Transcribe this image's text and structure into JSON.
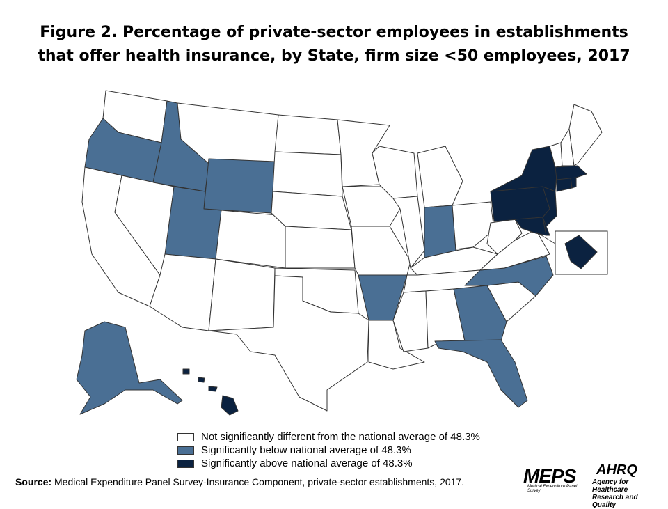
{
  "title_line1": "Figure 2. Percentage of private-sector employees in establishments",
  "title_line2": "that offer health insurance, by State, firm size <50 employees, 2017",
  "colors": {
    "not_significant": "#ffffff",
    "below": "#4a6f94",
    "above": "#0b2240",
    "border": "#333333"
  },
  "legend": [
    {
      "label": "Not significantly different from the national average of 48.3%",
      "category": "not_significant"
    },
    {
      "label": "Significantly below national average of 48.3%",
      "category": "below"
    },
    {
      "label": "Significantly above national average of 48.3%",
      "category": "above"
    }
  ],
  "states_below": [
    "Oregon",
    "Idaho",
    "Wyoming",
    "Utah",
    "Arkansas",
    "Indiana",
    "North Carolina",
    "Georgia",
    "Florida",
    "Alaska"
  ],
  "states_above": [
    "New York",
    "Pennsylvania",
    "New Jersey",
    "Maryland",
    "Delaware",
    "Massachusetts",
    "Rhode Island",
    "Connecticut",
    "District of Columbia",
    "Hawaii"
  ],
  "source_label": "Source:",
  "source_text": " Medical Expenditure Panel Survey-Insurance Component, private-sector establishments, 2017.",
  "logos": {
    "meps": "MEPS",
    "meps_sub": "Medical Expenditure Panel Survey",
    "ahrq": "AHRQ",
    "ahrq_sub1": "Agency for Healthcare",
    "ahrq_sub2": "Research and Quality"
  }
}
